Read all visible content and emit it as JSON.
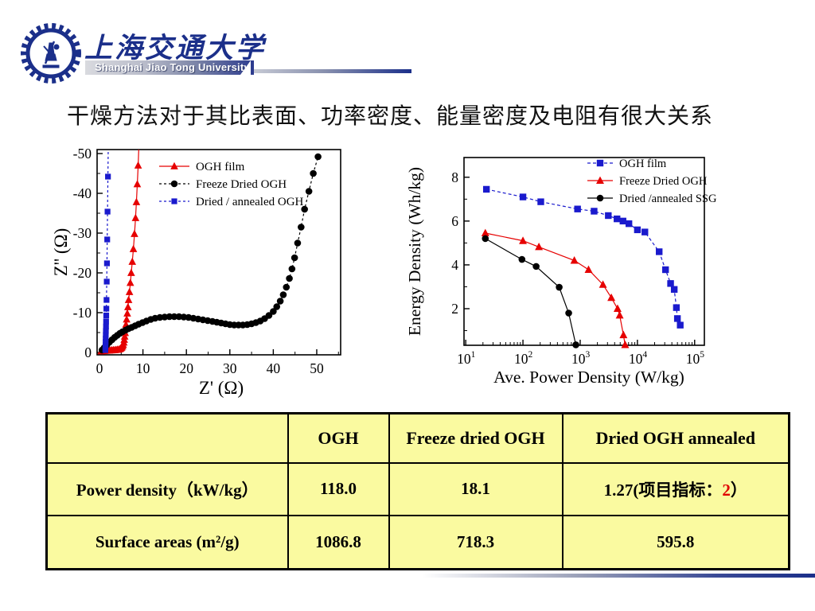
{
  "header": {
    "university_cn": "上海交通大学",
    "university_en": "Shanghai Jiao Tong University"
  },
  "title": "干燥方法对于其比表面、功率密度、能量密度及电阻有很大关系",
  "colors": {
    "navy": "#1b2f8a",
    "accent_red": "#e00000",
    "series_red": "#e60000",
    "series_blue": "#1a1acd",
    "series_black": "#000000",
    "table_bg": "#fafaa0"
  },
  "chart_data": [
    {
      "id": "nyquist",
      "type": "scatter",
      "title": "",
      "xlabel": "Z' (Ω)",
      "ylabel": "Z'' (Ω)",
      "xlim": [
        -0.55,
        55.5
      ],
      "ylim": [
        0.6,
        -51
      ],
      "xticks": [
        0,
        10,
        20,
        30,
        40,
        50
      ],
      "yticks": [
        0,
        -10,
        -20,
        -30,
        -40,
        -50
      ],
      "x_minor": [
        5,
        15,
        25,
        35,
        45,
        55
      ],
      "y_minor": [
        -5,
        -15,
        -25,
        -35,
        -45
      ],
      "grid": false,
      "legend_position": "top-left-inside",
      "series": [
        {
          "name": "OGH film",
          "color": "#e60000",
          "marker": "triangle",
          "dash": "",
          "points": [
            [
              0.4,
              -0.3
            ],
            [
              0.8,
              -0.35
            ],
            [
              1.2,
              -0.4
            ],
            [
              1.6,
              -0.45
            ],
            [
              2.0,
              -0.5
            ],
            [
              2.3,
              -0.5
            ],
            [
              2.6,
              -0.55
            ],
            [
              2.9,
              -0.55
            ],
            [
              3.2,
              -0.6
            ],
            [
              3.5,
              -0.6
            ],
            [
              3.8,
              -0.65
            ],
            [
              4.1,
              -0.7
            ],
            [
              4.4,
              -0.75
            ],
            [
              4.7,
              -0.85
            ],
            [
              4.9,
              -1.0
            ],
            [
              5.1,
              -1.2
            ],
            [
              5.3,
              -1.5
            ],
            [
              5.45,
              -1.9
            ],
            [
              5.6,
              -2.5
            ],
            [
              5.7,
              -3.2
            ],
            [
              5.8,
              -4.0
            ],
            [
              5.9,
              -4.9
            ],
            [
              6.0,
              -5.9
            ],
            [
              6.1,
              -7.0
            ],
            [
              6.25,
              -8.3
            ],
            [
              6.4,
              -9.8
            ],
            [
              6.55,
              -11.4
            ],
            [
              6.7,
              -13.2
            ],
            [
              6.9,
              -15.2
            ],
            [
              7.1,
              -17.5
            ],
            [
              7.3,
              -20.0
            ],
            [
              7.55,
              -22.8
            ],
            [
              7.8,
              -26.0
            ],
            [
              8.05,
              -29.8
            ],
            [
              8.3,
              -33.8
            ],
            [
              8.5,
              -37.8
            ],
            [
              8.7,
              -42.3
            ],
            [
              8.9,
              -47.0
            ]
          ],
          "tail": [
            [
              9.05,
              -51.5
            ]
          ]
        },
        {
          "name": "Freeze Dried OGH",
          "color": "#000000",
          "marker": "circle",
          "dash": "3 3",
          "points": [
            [
              0.6,
              -0.6
            ],
            [
              1.1,
              -1.2
            ],
            [
              1.7,
              -1.9
            ],
            [
              2.3,
              -2.6
            ],
            [
              2.9,
              -3.2
            ],
            [
              3.5,
              -3.8
            ],
            [
              4.1,
              -4.3
            ],
            [
              4.7,
              -4.8
            ],
            [
              5.3,
              -5.2
            ],
            [
              6.0,
              -5.6
            ],
            [
              6.7,
              -6.0
            ],
            [
              7.4,
              -6.3
            ],
            [
              8.2,
              -6.7
            ],
            [
              9.0,
              -7.1
            ],
            [
              9.9,
              -7.5
            ],
            [
              10.8,
              -7.9
            ],
            [
              11.8,
              -8.3
            ],
            [
              12.8,
              -8.6
            ],
            [
              13.9,
              -8.8
            ],
            [
              15.0,
              -8.9
            ],
            [
              16.1,
              -9.0
            ],
            [
              17.2,
              -9.0
            ],
            [
              18.3,
              -9.0
            ],
            [
              19.4,
              -8.9
            ],
            [
              20.5,
              -8.8
            ],
            [
              21.6,
              -8.6
            ],
            [
              22.7,
              -8.4
            ],
            [
              23.8,
              -8.2
            ],
            [
              24.9,
              -8.0
            ],
            [
              26.0,
              -7.8
            ],
            [
              27.0,
              -7.6
            ],
            [
              28.0,
              -7.4
            ],
            [
              29.0,
              -7.2
            ],
            [
              30.0,
              -7.0
            ],
            [
              31.0,
              -6.9
            ],
            [
              32.0,
              -6.9
            ],
            [
              33.0,
              -6.9
            ],
            [
              34.0,
              -7.0
            ],
            [
              35.0,
              -7.2
            ],
            [
              36.0,
              -7.5
            ],
            [
              37.0,
              -7.9
            ],
            [
              38.0,
              -8.5
            ],
            [
              39.0,
              -9.3
            ],
            [
              40.0,
              -10.3
            ],
            [
              40.8,
              -11.5
            ],
            [
              41.6,
              -12.9
            ],
            [
              42.3,
              -14.5
            ],
            [
              43.0,
              -16.4
            ],
            [
              43.7,
              -18.6
            ],
            [
              44.3,
              -21.0
            ],
            [
              44.9,
              -23.8
            ],
            [
              45.6,
              -27.5
            ],
            [
              46.4,
              -31.5
            ],
            [
              47.2,
              -36.0
            ],
            [
              48.2,
              -40.5
            ],
            [
              49.2,
              -45.0
            ],
            [
              50.3,
              -49.2
            ]
          ],
          "tail": []
        },
        {
          "name": "Dried / annealed OGH",
          "color": "#1a1acd",
          "marker": "square",
          "dash": "3 3",
          "points": [
            [
              1.35,
              -0.6
            ],
            [
              1.37,
              -1.2
            ],
            [
              1.39,
              -1.9
            ],
            [
              1.41,
              -2.7
            ],
            [
              1.43,
              -3.5
            ],
            [
              1.45,
              -4.4
            ],
            [
              1.47,
              -5.4
            ],
            [
              1.5,
              -6.5
            ],
            [
              1.52,
              -7.8
            ],
            [
              1.55,
              -9.3
            ],
            [
              1.58,
              -11.0
            ],
            [
              1.62,
              -13.2
            ],
            [
              1.67,
              -17.8
            ],
            [
              1.72,
              -22.4
            ],
            [
              1.78,
              -28.4
            ],
            [
              1.85,
              -35.4
            ],
            [
              1.95,
              -44.2
            ]
          ],
          "tail": [
            [
              2.02,
              -51.5
            ]
          ]
        }
      ]
    },
    {
      "id": "ragone",
      "type": "scatter",
      "title": "",
      "xscale": "log",
      "xlabel": "Ave. Power Density (W/kg)",
      "ylabel": "Energy Density (Wh/kg)",
      "xlim_exp": [
        0.97,
        5.17
      ],
      "ylim": [
        0.33,
        8.9
      ],
      "xticks_exp": [
        1,
        2,
        3,
        4,
        5
      ],
      "yticks": [
        2,
        4,
        6,
        8
      ],
      "y_minor": [
        1,
        3,
        5,
        7
      ],
      "grid": false,
      "legend_position": "top-right-inside",
      "series": [
        {
          "name": "OGH film",
          "color": "#1a1acd",
          "marker": "square",
          "dash": "4 3",
          "points": [
            [
              23,
              7.45
            ],
            [
              100,
              7.1
            ],
            [
              205,
              6.88
            ],
            [
              900,
              6.55
            ],
            [
              1750,
              6.45
            ],
            [
              3100,
              6.25
            ],
            [
              4400,
              6.1
            ],
            [
              5600,
              6.0
            ],
            [
              7100,
              5.88
            ],
            [
              10000,
              5.6
            ],
            [
              13500,
              5.5
            ],
            [
              24000,
              4.6
            ],
            [
              31000,
              3.78
            ],
            [
              38000,
              3.15
            ],
            [
              44000,
              2.88
            ],
            [
              48000,
              2.05
            ],
            [
              50000,
              1.55
            ],
            [
              56000,
              1.25
            ]
          ],
          "tail": []
        },
        {
          "name": "Freeze Dried OGH",
          "color": "#e60000",
          "marker": "triangle",
          "dash": "",
          "points": [
            [
              22,
              5.45
            ],
            [
              100,
              5.1
            ],
            [
              190,
              4.82
            ],
            [
              790,
              4.2
            ],
            [
              1400,
              3.78
            ],
            [
              2500,
              3.1
            ],
            [
              3500,
              2.5
            ],
            [
              4500,
              2.0
            ],
            [
              4900,
              1.7
            ],
            [
              5700,
              0.8
            ],
            [
              6100,
              0.35
            ]
          ],
          "tail": []
        },
        {
          "name": "Dried /annealed SSG",
          "color": "#000000",
          "marker": "circle",
          "dash": "",
          "points": [
            [
              22,
              5.2
            ],
            [
              96,
              4.25
            ],
            [
              170,
              3.93
            ],
            [
              430,
              2.98
            ],
            [
              630,
              1.8
            ],
            [
              840,
              0.35
            ]
          ],
          "tail": []
        }
      ]
    }
  ],
  "table": {
    "headers": [
      "",
      "OGH",
      "Freeze dried OGH",
      "Dried OGH annealed"
    ],
    "rows": [
      {
        "label": "Power density（kW/kg）",
        "v1": "118.0",
        "v1_color": "#e00000",
        "v2": "18.1",
        "v2_color": "#e00000",
        "v3_prefix": "1.27(项目指标：",
        "v3_highlight": "2",
        "v3_highlight_color": "#e00000",
        "v3_suffix": "）"
      },
      {
        "label": "Surface areas (m²/g)",
        "v1": "1086.8",
        "v2": "718.3",
        "v3": "595.8"
      }
    ]
  }
}
